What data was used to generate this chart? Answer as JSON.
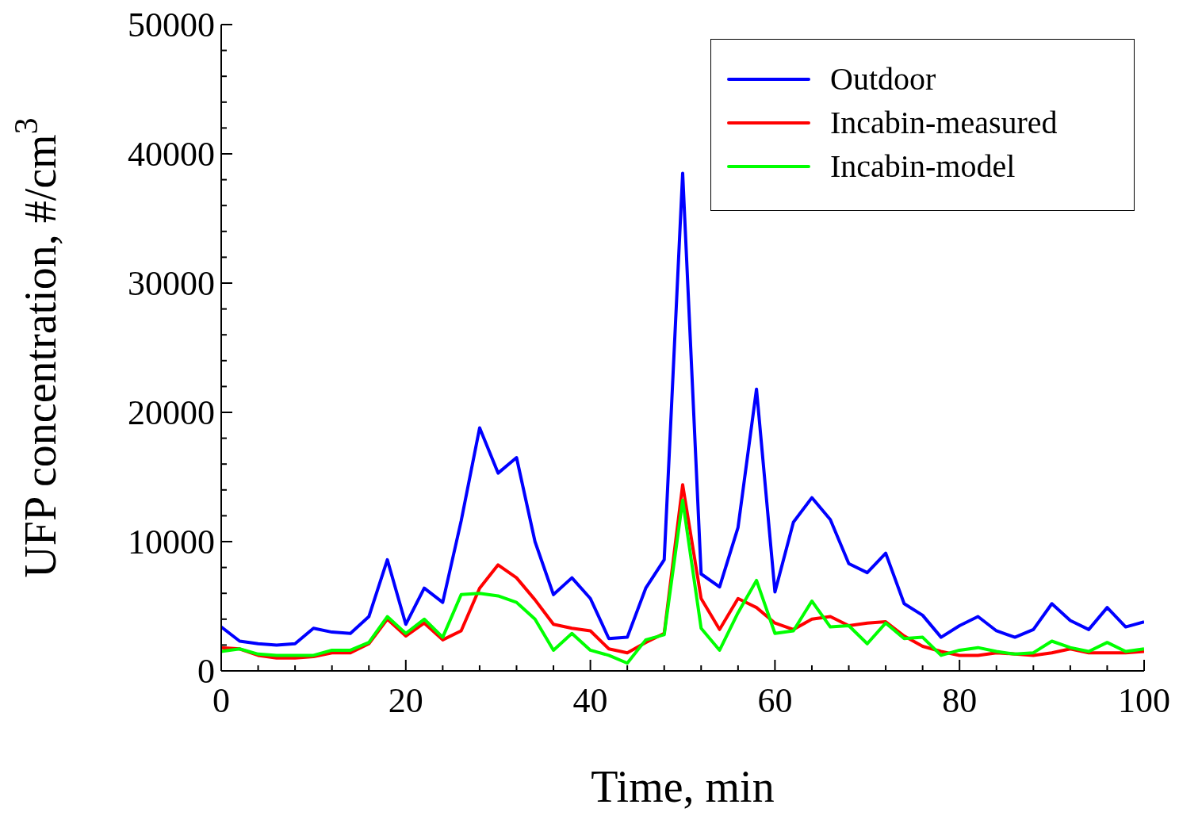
{
  "chart_data": {
    "type": "line",
    "xlabel": "Time, min",
    "ylabel": "UFP concentration, #/cm$^{3}$",
    "x": [
      0,
      2,
      4,
      6,
      8,
      10,
      12,
      14,
      16,
      18,
      20,
      22,
      24,
      26,
      28,
      30,
      32,
      34,
      36,
      38,
      40,
      42,
      44,
      46,
      48,
      50,
      52,
      54,
      56,
      58,
      60,
      62,
      64,
      66,
      68,
      70,
      72,
      74,
      76,
      78,
      80,
      82,
      84,
      86,
      88,
      90,
      92,
      94,
      96,
      98,
      100
    ],
    "series": [
      {
        "name": "Outdoor",
        "color": "#0000ff",
        "values": [
          3400,
          2300,
          2100,
          2000,
          2100,
          3300,
          3000,
          2900,
          4200,
          8600,
          3600,
          6400,
          5300,
          11600,
          18800,
          15300,
          16500,
          10000,
          5900,
          7200,
          5600,
          2500,
          2600,
          6400,
          8600,
          38500,
          7500,
          6500,
          11100,
          21800,
          6100,
          11500,
          13400,
          11700,
          8300,
          7600,
          9100,
          5200,
          4300,
          2600,
          3500,
          4200,
          3100,
          2600,
          3200,
          5200,
          3900,
          3200,
          4900,
          3400,
          3800
        ]
      },
      {
        "name": "Incabin-measured",
        "color": "#ff0000",
        "values": [
          1800,
          1700,
          1200,
          1000,
          1000,
          1100,
          1400,
          1400,
          2100,
          4000,
          2700,
          3700,
          2400,
          3100,
          6400,
          8200,
          7200,
          5500,
          3600,
          3300,
          3100,
          1700,
          1400,
          2200,
          2900,
          14400,
          5600,
          3200,
          5600,
          4900,
          3700,
          3200,
          4000,
          4200,
          3500,
          3700,
          3800,
          2700,
          1900,
          1500,
          1200,
          1200,
          1400,
          1300,
          1200,
          1400,
          1700,
          1400,
          1400,
          1400,
          1500
        ]
      },
      {
        "name": "Incabin-model",
        "color": "#00ff00",
        "values": [
          1500,
          1700,
          1300,
          1200,
          1200,
          1200,
          1600,
          1600,
          2200,
          4200,
          2900,
          4000,
          2600,
          5900,
          6000,
          5800,
          5300,
          4000,
          1600,
          2900,
          1600,
          1200,
          600,
          2400,
          2800,
          13200,
          3300,
          1600,
          4500,
          7000,
          2900,
          3100,
          5400,
          3400,
          3500,
          2100,
          3700,
          2500,
          2600,
          1200,
          1600,
          1800,
          1500,
          1300,
          1400,
          2300,
          1800,
          1500,
          2200,
          1500,
          1700
        ]
      }
    ],
    "xlim": [
      0,
      100
    ],
    "xticks": [
      0,
      {
        "value": 4,
        "label": null
      },
      {
        "value": 8,
        "label": null
      },
      {
        "value": 12,
        "label": null
      },
      {
        "value": 16,
        "label": null
      },
      20,
      {
        "value": 24,
        "label": null
      },
      {
        "value": 28,
        "label": null
      },
      {
        "value": 32,
        "label": null
      },
      {
        "value": 36,
        "label": null
      },
      40,
      {
        "value": 44,
        "label": null
      },
      {
        "value": 48,
        "label": null
      },
      {
        "value": 52,
        "label": null
      },
      {
        "value": 56,
        "label": null
      },
      60,
      {
        "value": 64,
        "label": null
      },
      {
        "value": 68,
        "label": null
      },
      {
        "value": 72,
        "label": null
      },
      {
        "value": 76,
        "label": null
      },
      80,
      {
        "value": 84,
        "label": null
      },
      {
        "value": 88,
        "label": null
      },
      {
        "value": 92,
        "label": null
      },
      {
        "value": 96,
        "label": null
      },
      100
    ],
    "ylim": [
      0,
      50000
    ],
    "yticks": [
      0,
      {
        "value": 2000,
        "label": null
      },
      {
        "value": 4000,
        "label": null
      },
      {
        "value": 6000,
        "label": null
      },
      {
        "value": 8000,
        "label": null
      },
      10000,
      {
        "value": 12000,
        "label": null
      },
      {
        "value": 14000,
        "label": null
      },
      {
        "value": 16000,
        "label": null
      },
      {
        "value": 18000,
        "label": null
      },
      20000,
      {
        "value": 22000,
        "label": null
      },
      {
        "value": 24000,
        "label": null
      },
      {
        "value": 26000,
        "label": null
      },
      {
        "value": 28000,
        "label": null
      },
      30000,
      {
        "value": 32000,
        "label": null
      },
      {
        "value": 34000,
        "label": null
      },
      {
        "value": 36000,
        "label": null
      },
      {
        "value": 38000,
        "label": null
      },
      40000,
      {
        "value": 42000,
        "label": null
      },
      {
        "value": 44000,
        "label": null
      },
      {
        "value": 46000,
        "label": null
      },
      {
        "value": 48000,
        "label": null
      },
      50000
    ],
    "grid": false,
    "legend": "top right",
    "marker": "none",
    "line_style": "solid"
  }
}
